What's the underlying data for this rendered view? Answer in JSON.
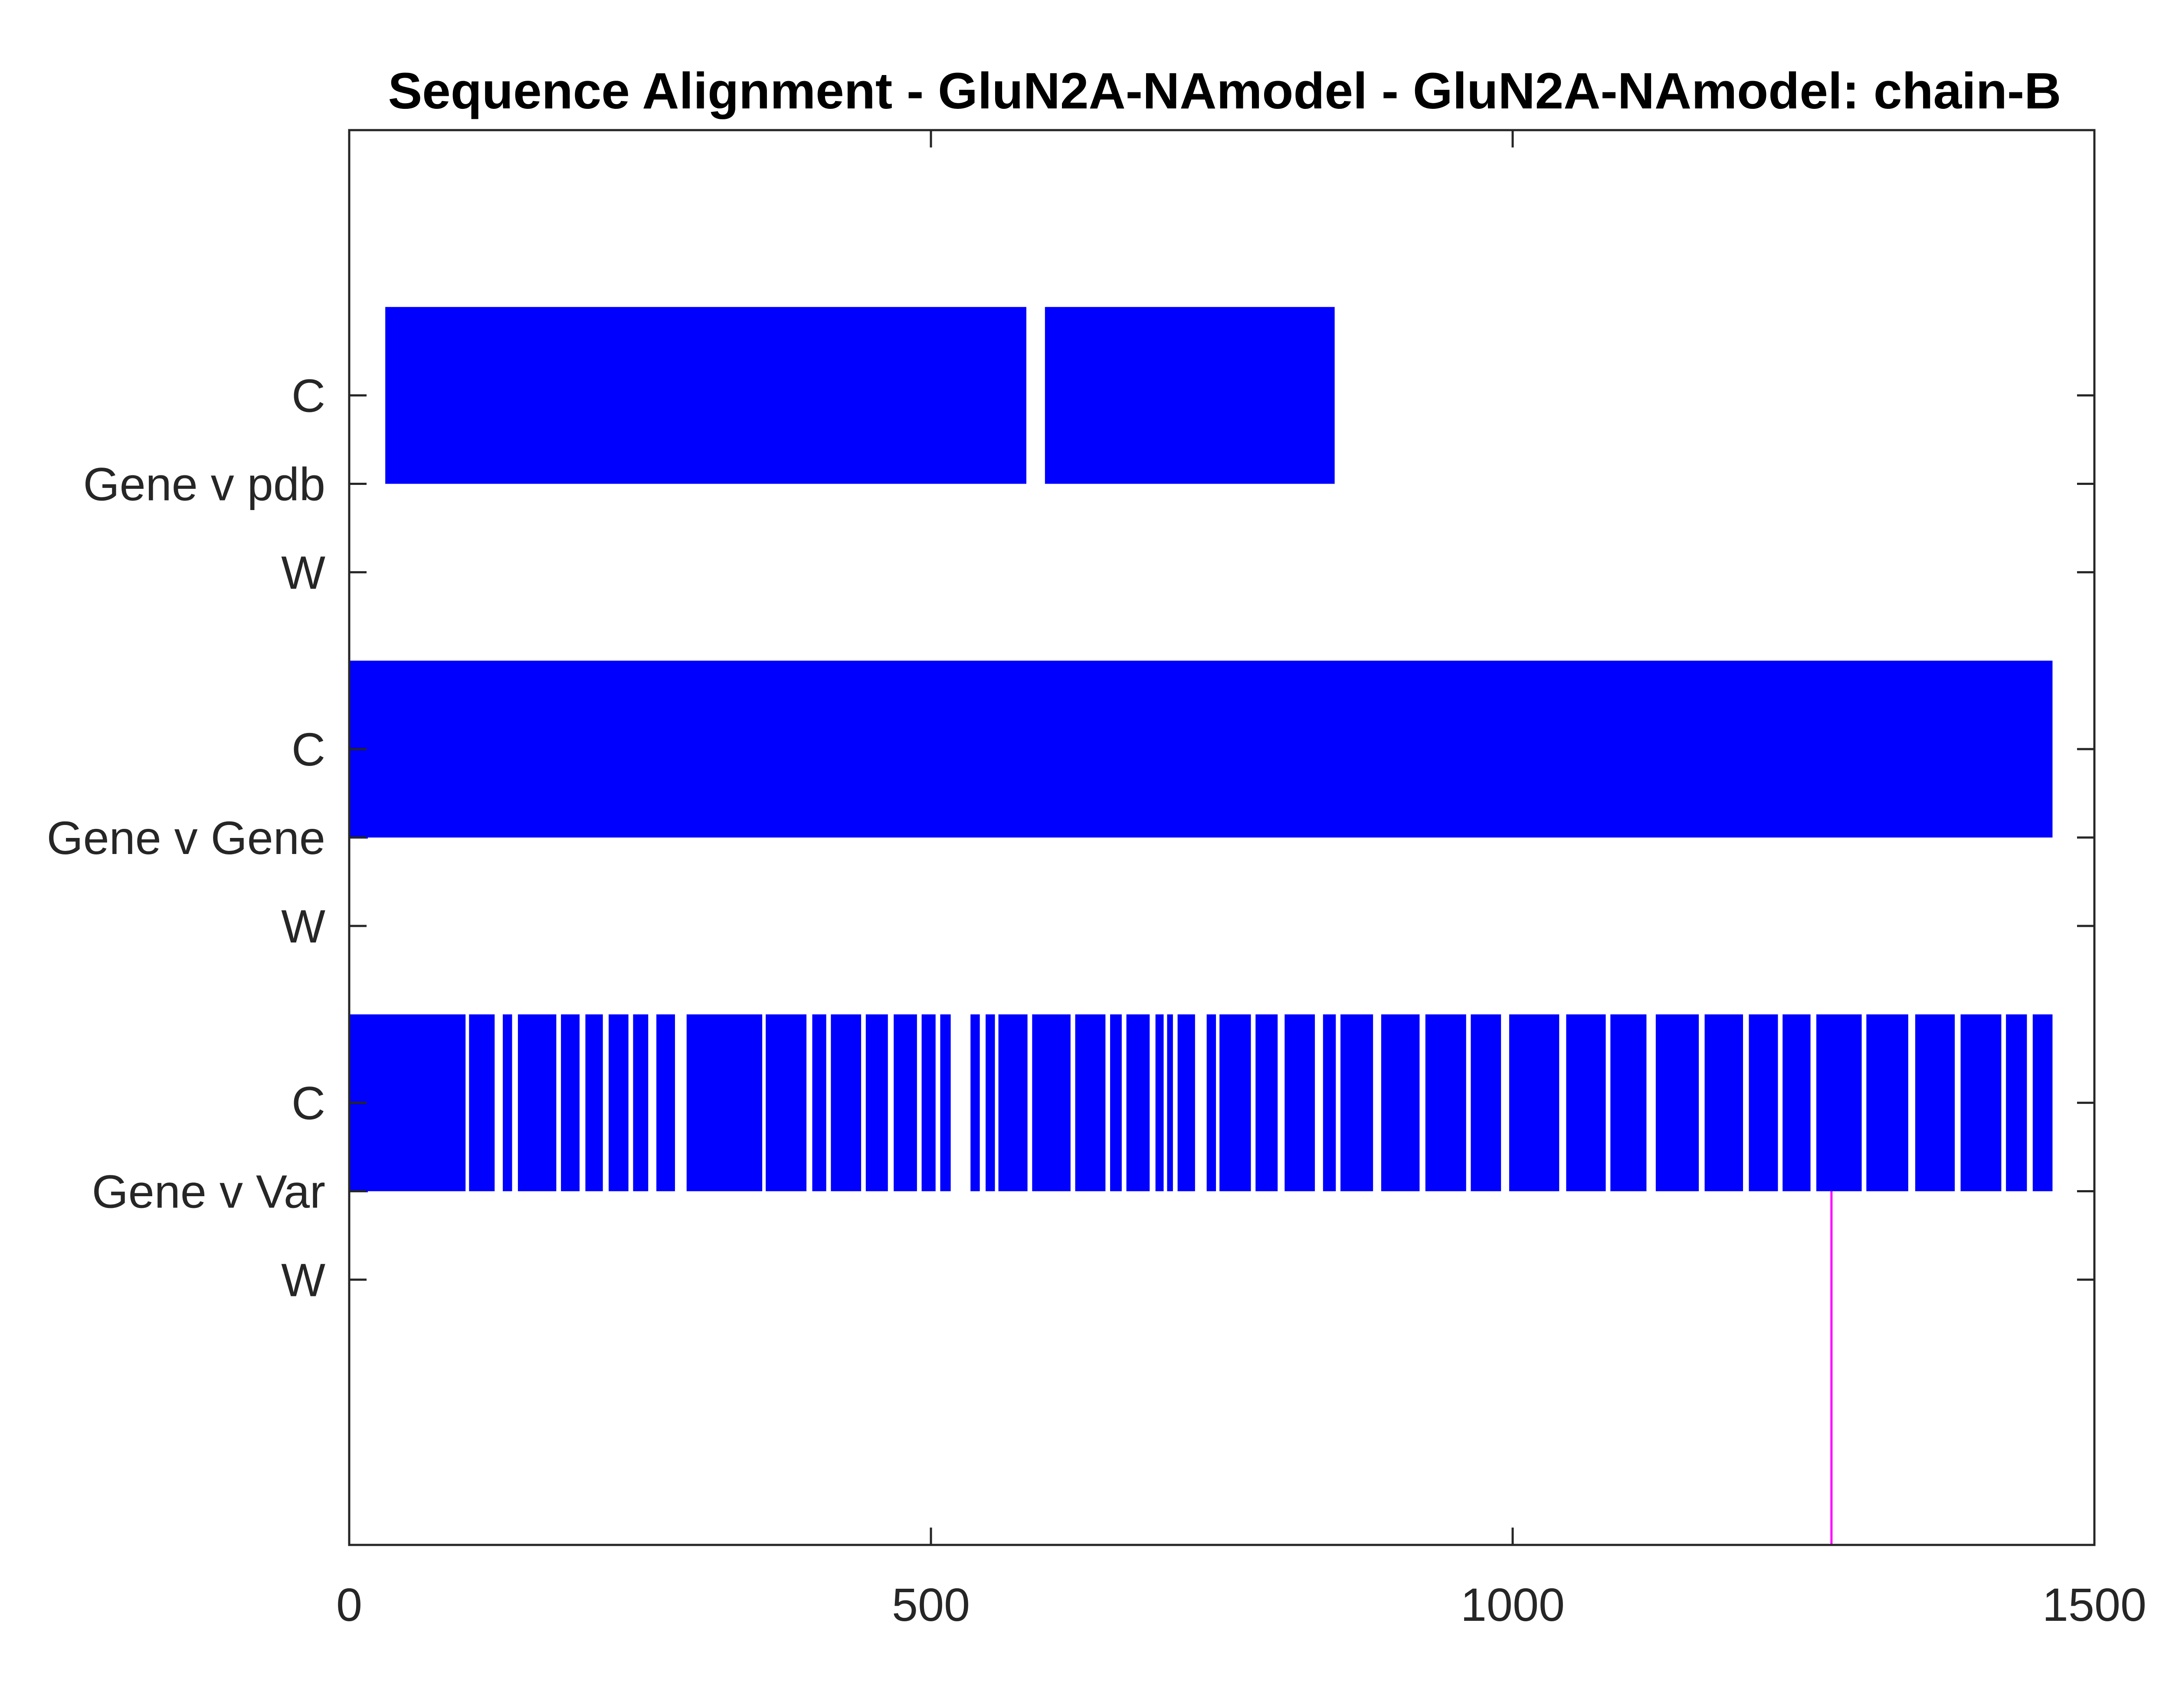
{
  "chart_data": {
    "type": "bar",
    "title": "Sequence Alignment - GluN2A-NAmodel - GluN2A-NAmodel: chain-B",
    "xlabel": "",
    "ylabel": "",
    "xlim": [
      0,
      1500
    ],
    "xticks": [
      "0",
      "500",
      "1000",
      "1500"
    ],
    "grid": false,
    "legend": "none",
    "colors": {
      "match": "#0000ff",
      "variant": "#ff00ff",
      "axis": "#262626"
    },
    "ylim": [
      -0.5,
      3.5
    ],
    "yticks": [
      {
        "value": 0.25,
        "label": "W"
      },
      {
        "value": 0.5,
        "label": "Gene v Var"
      },
      {
        "value": 0.75,
        "label": "C"
      },
      {
        "value": 1.25,
        "label": "W"
      },
      {
        "value": 1.5,
        "label": "Gene v Gene"
      },
      {
        "value": 1.75,
        "label": "C"
      },
      {
        "value": 2.25,
        "label": "W"
      },
      {
        "value": 2.5,
        "label": "Gene v pdb"
      },
      {
        "value": 2.75,
        "label": "C"
      }
    ],
    "rows": [
      {
        "label": "Gene v pdb",
        "base": 2.5,
        "top": 3.0,
        "segments": [
          [
            31,
            582
          ],
          [
            598,
            847
          ]
        ]
      },
      {
        "label": "Gene v Gene",
        "base": 1.5,
        "top": 2.0,
        "segments": [
          [
            0,
            1464
          ]
        ],
        "baseline": [
          0,
          16
        ]
      },
      {
        "label": "Gene v Var",
        "base": 0.5,
        "top": 1.0,
        "range": [
          0,
          1464
        ],
        "baseline": [
          0,
          16
        ],
        "gaps": [
          [
            100,
            103
          ],
          [
            125,
            132
          ],
          [
            140,
            145
          ],
          [
            178,
            182
          ],
          [
            198,
            203
          ],
          [
            218,
            223
          ],
          [
            240,
            244
          ],
          [
            257,
            264
          ],
          [
            280,
            290
          ],
          [
            355,
            358
          ],
          [
            393,
            398
          ],
          [
            410,
            414
          ],
          [
            440,
            444
          ],
          [
            463,
            468
          ],
          [
            488,
            492
          ],
          [
            504,
            508
          ],
          [
            517,
            534
          ],
          [
            542,
            547
          ],
          [
            555,
            558
          ],
          [
            583,
            587
          ],
          [
            620,
            624
          ],
          [
            650,
            654
          ],
          [
            664,
            668
          ],
          [
            688,
            693
          ],
          [
            700,
            703
          ],
          [
            708,
            712
          ],
          [
            727,
            737
          ],
          [
            745,
            748
          ],
          [
            775,
            779
          ],
          [
            798,
            804
          ],
          [
            830,
            837
          ],
          [
            848,
            852
          ],
          [
            880,
            887
          ],
          [
            920,
            925
          ],
          [
            960,
            964
          ],
          [
            990,
            997
          ],
          [
            1040,
            1046
          ],
          [
            1080,
            1084
          ],
          [
            1115,
            1123
          ],
          [
            1160,
            1165
          ],
          [
            1198,
            1203
          ],
          [
            1228,
            1232
          ],
          [
            1256,
            1261
          ],
          [
            1300,
            1304
          ],
          [
            1340,
            1346
          ],
          [
            1380,
            1385
          ],
          [
            1420,
            1424
          ],
          [
            1442,
            1447
          ]
        ],
        "variants": [
          1274
        ]
      }
    ]
  }
}
